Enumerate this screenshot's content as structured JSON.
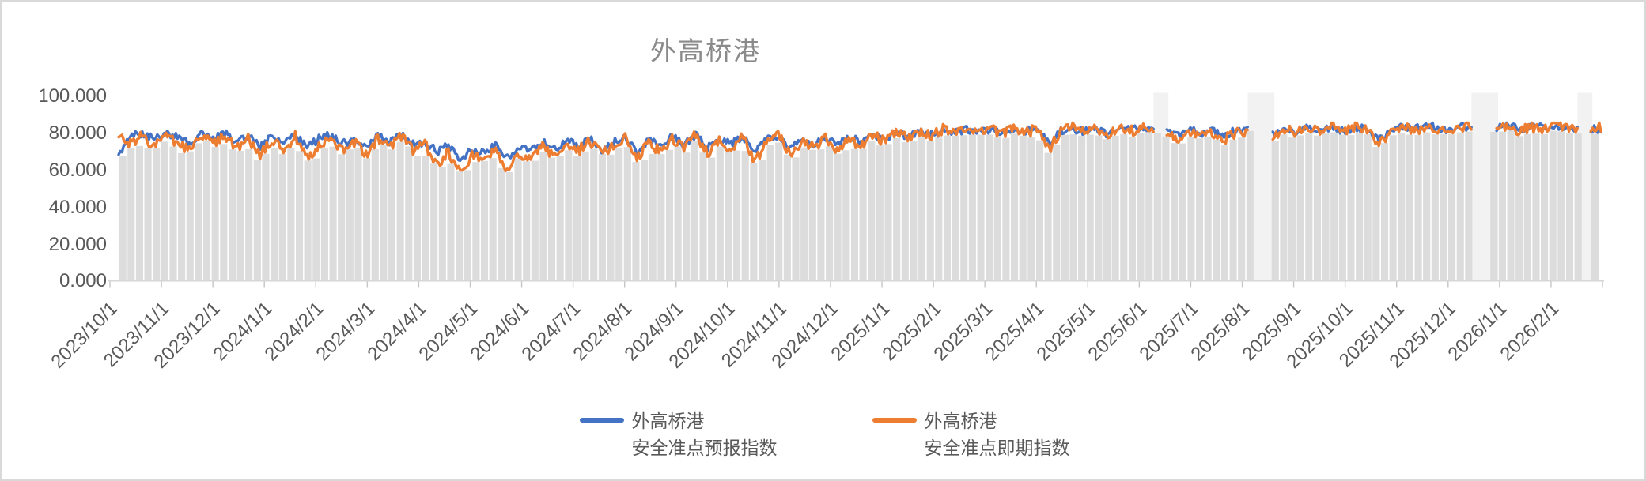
{
  "title": "外高桥港",
  "frame": {
    "border_color": "#d9d9d9",
    "background": "#ffffff"
  },
  "y_axis": {
    "labels": [
      "100.000",
      "80.000",
      "60.000",
      "40.000",
      "20.000",
      "0.000"
    ],
    "min": 0,
    "max": 100,
    "step": 20
  },
  "legend": {
    "items": [
      {
        "line1": "外高桥港",
        "line2": "安全准点预报指数",
        "color": "#4472C4"
      },
      {
        "line1": "外高桥港",
        "line2": "安全准点即期指数",
        "color": "#ED7D31"
      }
    ]
  },
  "chart_data": {
    "type": "line",
    "title": "外高桥港",
    "xlabel": "",
    "ylabel": "",
    "ylim": [
      0,
      100
    ],
    "y_tick_step": 20,
    "grid": false,
    "legend_position": "bottom",
    "x_start_date": "2023/10/1",
    "x_step_days": 7,
    "x_tick_labels": [
      "2023/10/1",
      "2023/11/1",
      "2023/12/1",
      "2024/1/1",
      "2024/2/1",
      "2024/3/1",
      "2024/4/1",
      "2024/5/1",
      "2024/6/1",
      "2024/7/1",
      "2024/8/1",
      "2024/9/1",
      "2024/10/1",
      "2024/11/1",
      "2024/12/1",
      "2025/1/1",
      "2025/2/1",
      "2025/3/1",
      "2025/4/1",
      "2025/5/1",
      "2025/6/1",
      "2025/7/1",
      "2025/8/1",
      "2025/9/1",
      "2025/10/1",
      "2025/11/1",
      "2025/12/1",
      "2026/1/1",
      "2026/2/1"
    ],
    "note_gaps": "null values = missing data periods (2025/6 mid, 2025/8 first half, 2025/12 late, 2026/2 late)",
    "series": [
      {
        "name": "外高桥港 安全准点预报指数",
        "color": "#4472C4",
        "values": [
          67,
          78,
          80,
          77,
          80,
          78,
          75,
          79,
          77,
          80,
          75,
          78,
          73,
          78,
          74,
          79,
          72,
          77,
          79,
          74,
          77,
          73,
          79,
          75,
          79,
          74,
          75,
          70,
          73,
          66,
          71,
          69,
          74,
          67,
          72,
          70,
          75,
          71,
          76,
          73,
          77,
          71,
          75,
          78,
          70,
          76,
          73,
          78,
          74,
          79,
          72,
          77,
          74,
          78,
          70,
          76,
          79,
          72,
          77,
          74,
          78,
          73,
          78,
          75,
          79,
          77,
          80,
          78,
          81,
          79,
          81,
          80,
          82,
          81,
          82,
          80,
          82,
          81,
          82,
          75,
          81,
          82,
          81,
          82,
          79,
          83,
          82,
          83,
          null,
          81,
          78,
          82,
          80,
          81,
          79,
          82,
          null,
          null,
          80,
          82,
          81,
          83,
          82,
          83,
          81,
          83,
          82,
          77,
          81,
          83,
          82,
          84,
          83,
          81,
          83,
          null,
          null,
          83,
          84,
          82,
          83,
          83,
          84,
          83,
          null,
          82
        ]
      },
      {
        "name": "外高桥港 安全准点即期指数",
        "color": "#ED7D31",
        "values": [
          80,
          74,
          79,
          72,
          78,
          75,
          70,
          78,
          74,
          79,
          71,
          77,
          68,
          76,
          70,
          78,
          66,
          74,
          77,
          70,
          75,
          68,
          77,
          72,
          78,
          71,
          74,
          63,
          70,
          58,
          68,
          64,
          72,
          60,
          69,
          65,
          73,
          67,
          75,
          70,
          76,
          68,
          74,
          78,
          66,
          75,
          70,
          77,
          72,
          79,
          69,
          76,
          71,
          78,
          65,
          74,
          79,
          68,
          76,
          72,
          78,
          70,
          77,
          73,
          79,
          75,
          80,
          77,
          81,
          78,
          82,
          79,
          81,
          80,
          82,
          79,
          82,
          80,
          82,
          71,
          81,
          83,
          80,
          82,
          78,
          83,
          81,
          83,
          null,
          79,
          76,
          81,
          78,
          80,
          77,
          80,
          null,
          null,
          79,
          82,
          80,
          83,
          81,
          83,
          80,
          83,
          81,
          74,
          80,
          83,
          81,
          84,
          82,
          80,
          83,
          null,
          null,
          82,
          84,
          81,
          83,
          82,
          84,
          83,
          null,
          83
        ]
      }
    ],
    "background_bars_color": "#dcdcdc",
    "gap_band_color": "#f2f2f2",
    "axis_line_color": "#d6d6d6",
    "tick_color": "#c6c6c6"
  }
}
